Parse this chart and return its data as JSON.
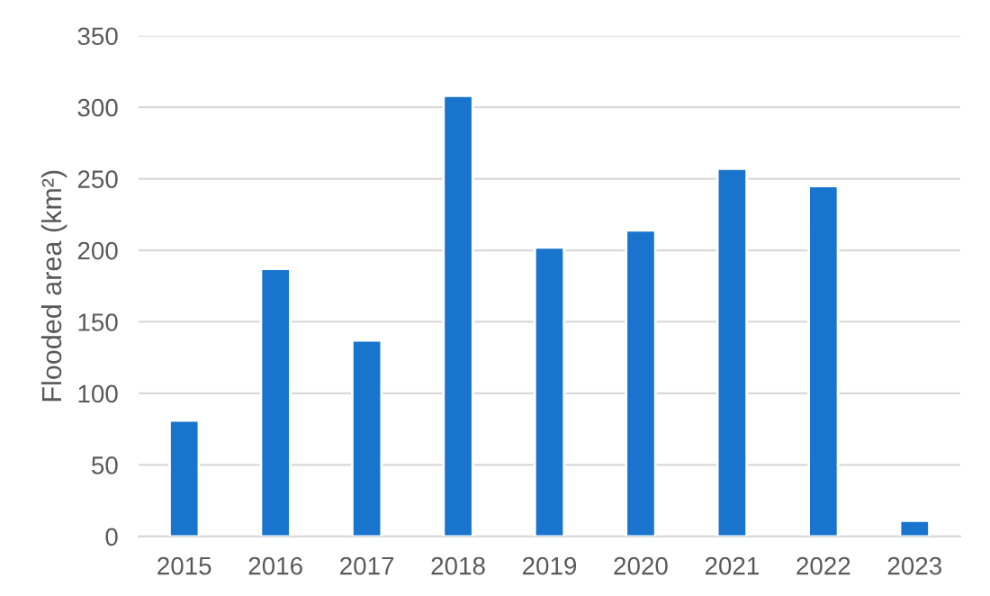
{
  "chart_data": {
    "type": "bar",
    "ylabel": "Flooded area (km²)",
    "categories": [
      "2015",
      "2016",
      "2017",
      "2018",
      "2019",
      "2020",
      "2021",
      "2022",
      "2023"
    ],
    "values": [
      81,
      187,
      137,
      308,
      202,
      214,
      257,
      245,
      11
    ],
    "color": "#1874cd",
    "ylim": [
      0,
      350
    ],
    "yticks": [
      0,
      50,
      100,
      150,
      200,
      250,
      300,
      350
    ],
    "grid": "y",
    "legend": false
  }
}
